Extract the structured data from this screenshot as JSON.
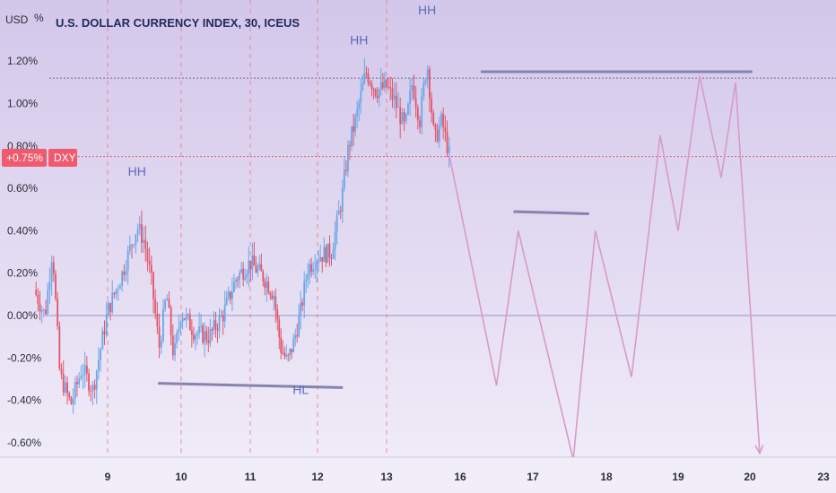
{
  "header": {
    "currency_unit": "USD",
    "title": "U.S. DOLLAR CURRENCY INDEX, 30, ICEUS"
  },
  "price_badge": {
    "value": "+0.75%",
    "symbol": "DXY",
    "color": "#f05a6e"
  },
  "colors": {
    "background_top": "#d3c7ea",
    "background_bottom": "#f2eef9",
    "candle_up": "#6aa6e8",
    "candle_down": "#e2566a",
    "projection": "#d89ac8",
    "level_line": "#7c7aa8",
    "session_line": "#ef7a86"
  },
  "chart_data": {
    "type": "candlestick",
    "title": "U.S. DOLLAR CURRENCY INDEX, 30, ICEUS",
    "y_unit": "%",
    "ylim": [
      -0.62,
      1.42
    ],
    "y_ticks": [
      "1.20%",
      "1.00%",
      "0.80%",
      "0.60%",
      "0.40%",
      "0.20%",
      "0.00%",
      "-0.20%",
      "-0.40%",
      "-0.60%"
    ],
    "x_ticks": [
      "9",
      "10",
      "11",
      "12",
      "13",
      "16",
      "17",
      "18",
      "19",
      "20",
      "23"
    ],
    "current_value": 0.75,
    "zero_line": 0.0,
    "close_path": [
      {
        "x": 8.0,
        "y": 0.12
      },
      {
        "x": 8.15,
        "y": 0.0
      },
      {
        "x": 8.25,
        "y": 0.32
      },
      {
        "x": 8.35,
        "y": -0.28
      },
      {
        "x": 8.5,
        "y": -0.42
      },
      {
        "x": 8.65,
        "y": -0.25
      },
      {
        "x": 8.8,
        "y": -0.35
      },
      {
        "x": 9.0,
        "y": 0.02
      },
      {
        "x": 9.2,
        "y": 0.2
      },
      {
        "x": 9.4,
        "y": 0.42
      },
      {
        "x": 9.5,
        "y": 0.35
      },
      {
        "x": 9.6,
        "y": 0.15
      },
      {
        "x": 9.7,
        "y": -0.15
      },
      {
        "x": 9.8,
        "y": 0.1
      },
      {
        "x": 9.9,
        "y": -0.2
      },
      {
        "x": 10.0,
        "y": 0.02
      },
      {
        "x": 10.2,
        "y": -0.08
      },
      {
        "x": 10.4,
        "y": -0.1
      },
      {
        "x": 10.6,
        "y": 0.0
      },
      {
        "x": 10.8,
        "y": 0.18
      },
      {
        "x": 11.0,
        "y": 0.25
      },
      {
        "x": 11.2,
        "y": 0.18
      },
      {
        "x": 11.35,
        "y": 0.1
      },
      {
        "x": 11.45,
        "y": -0.15
      },
      {
        "x": 11.55,
        "y": -0.22
      },
      {
        "x": 11.65,
        "y": -0.12
      },
      {
        "x": 11.75,
        "y": 0.02
      },
      {
        "x": 11.85,
        "y": 0.22
      },
      {
        "x": 12.0,
        "y": 0.28
      },
      {
        "x": 12.2,
        "y": 0.3
      },
      {
        "x": 12.35,
        "y": 0.55
      },
      {
        "x": 12.45,
        "y": 0.8
      },
      {
        "x": 12.55,
        "y": 0.92
      },
      {
        "x": 12.7,
        "y": 1.15
      },
      {
        "x": 12.85,
        "y": 1.06
      },
      {
        "x": 13.0,
        "y": 1.08
      },
      {
        "x": 13.1,
        "y": 1.02
      },
      {
        "x": 13.25,
        "y": 0.88
      },
      {
        "x": 13.35,
        "y": 1.1
      },
      {
        "x": 13.45,
        "y": 0.92
      },
      {
        "x": 13.55,
        "y": 1.2
      },
      {
        "x": 13.65,
        "y": 0.82
      },
      {
        "x": 13.75,
        "y": 0.92
      },
      {
        "x": 13.85,
        "y": 0.76
      }
    ],
    "projection": [
      {
        "x": 13.85,
        "y": 0.76
      },
      {
        "x": 16.5,
        "y": -0.33
      },
      {
        "x": 16.8,
        "y": 0.4
      },
      {
        "x": 17.55,
        "y": -0.68
      },
      {
        "x": 17.85,
        "y": 0.4
      },
      {
        "x": 18.35,
        "y": -0.29
      },
      {
        "x": 18.75,
        "y": 0.85
      },
      {
        "x": 19.0,
        "y": 0.4
      },
      {
        "x": 19.3,
        "y": 1.13
      },
      {
        "x": 19.6,
        "y": 0.65
      },
      {
        "x": 19.8,
        "y": 1.1
      },
      {
        "x": 20.4,
        "y": -0.65
      }
    ],
    "levels": [
      {
        "x_start": 9.7,
        "x_end": 12.35,
        "y_start": -0.32,
        "y_end": -0.34
      },
      {
        "x_start": 16.3,
        "x_end": 20.05,
        "y_start": 1.15,
        "y_end": 1.15
      },
      {
        "x_start": 16.75,
        "x_end": 17.75,
        "y_start": 0.49,
        "y_end": 0.48
      }
    ],
    "reference_lines": [
      1.12,
      0.75
    ],
    "annotations": [
      {
        "text": "HH",
        "x": 9.4,
        "y": 0.66
      },
      {
        "text": "HH",
        "x": 12.6,
        "y": 1.28
      },
      {
        "text": "HH",
        "x": 13.55,
        "y": 1.42
      },
      {
        "text": "HL",
        "x": 11.75,
        "y": -0.37
      }
    ]
  }
}
